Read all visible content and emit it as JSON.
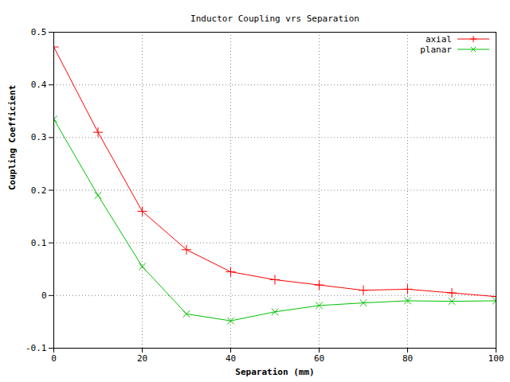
{
  "chart_data": {
    "type": "line",
    "title": "Inductor Coupling vrs Separation",
    "x_label": "Separation (mm)",
    "y_label": "Coupling Coefficient",
    "x": [
      0,
      10,
      20,
      30,
      40,
      50,
      60,
      70,
      80,
      90,
      100
    ],
    "series": [
      {
        "name": "axial",
        "color": "#ff0000",
        "marker": "plus",
        "line_style": "solid",
        "values": [
          0.472,
          0.31,
          0.16,
          0.087,
          0.045,
          0.03,
          0.02,
          0.01,
          0.012,
          0.005,
          -0.002
        ]
      },
      {
        "name": "planar",
        "color": "#00c000",
        "marker": "times",
        "line_style": "solid",
        "values": [
          0.335,
          0.19,
          0.055,
          -0.035,
          -0.048,
          -0.031,
          -0.019,
          -0.014,
          -0.01,
          -0.011,
          -0.01
        ]
      }
    ],
    "xlim": [
      0,
      100
    ],
    "xticks": [
      0,
      20,
      40,
      60,
      80,
      100
    ],
    "ylim": [
      -0.1,
      0.5
    ],
    "yticks": [
      -0.1,
      0,
      0.1,
      0.2,
      0.3,
      0.4,
      0.5
    ],
    "grid": true,
    "legend": "top-right"
  }
}
